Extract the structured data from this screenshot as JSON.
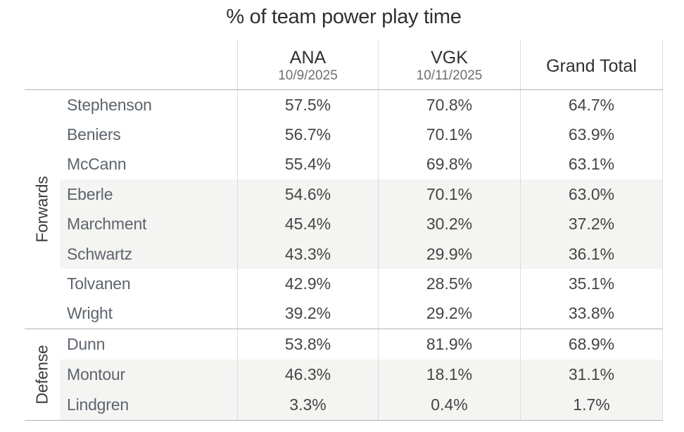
{
  "title": "% of team power play time",
  "colors": {
    "band_shade": "#f4f4f2",
    "grid_vertical": "#dcdcdc",
    "grid_horizontal": "#b3b3b3",
    "header_text": "#303030",
    "date_text": "#6f6f6f",
    "player_text": "#5e646d",
    "value_text": "#454545"
  },
  "chart_data": {
    "type": "table",
    "title": "% of team power play time",
    "columns": [
      {
        "team": "ANA",
        "date": "10/9/2025"
      },
      {
        "team": "VGK",
        "date": "10/11/2025"
      },
      {
        "team": "Grand Total",
        "date": ""
      }
    ],
    "groups": [
      {
        "group": "Forwards",
        "rows": [
          {
            "player": "Stephenson",
            "values": [
              "57.5%",
              "70.8%",
              "64.7%"
            ],
            "shaded": false
          },
          {
            "player": "Beniers",
            "values": [
              "56.7%",
              "70.1%",
              "63.9%"
            ],
            "shaded": false
          },
          {
            "player": "McCann",
            "values": [
              "55.4%",
              "69.8%",
              "63.1%"
            ],
            "shaded": false
          },
          {
            "player": "Eberle",
            "values": [
              "54.6%",
              "70.1%",
              "63.0%"
            ],
            "shaded": true
          },
          {
            "player": "Marchment",
            "values": [
              "45.4%",
              "30.2%",
              "37.2%"
            ],
            "shaded": true
          },
          {
            "player": "Schwartz",
            "values": [
              "43.3%",
              "29.9%",
              "36.1%"
            ],
            "shaded": true
          },
          {
            "player": "Tolvanen",
            "values": [
              "42.9%",
              "28.5%",
              "35.1%"
            ],
            "shaded": false
          },
          {
            "player": "Wright",
            "values": [
              "39.2%",
              "29.2%",
              "33.8%"
            ],
            "shaded": false
          }
        ]
      },
      {
        "group": "Defense",
        "rows": [
          {
            "player": "Dunn",
            "values": [
              "53.8%",
              "81.9%",
              "68.9%"
            ],
            "shaded": false
          },
          {
            "player": "Montour",
            "values": [
              "46.3%",
              "18.1%",
              "31.1%"
            ],
            "shaded": true
          },
          {
            "player": "Lindgren",
            "values": [
              "3.3%",
              "0.4%",
              "1.7%"
            ],
            "shaded": true
          }
        ]
      }
    ]
  }
}
